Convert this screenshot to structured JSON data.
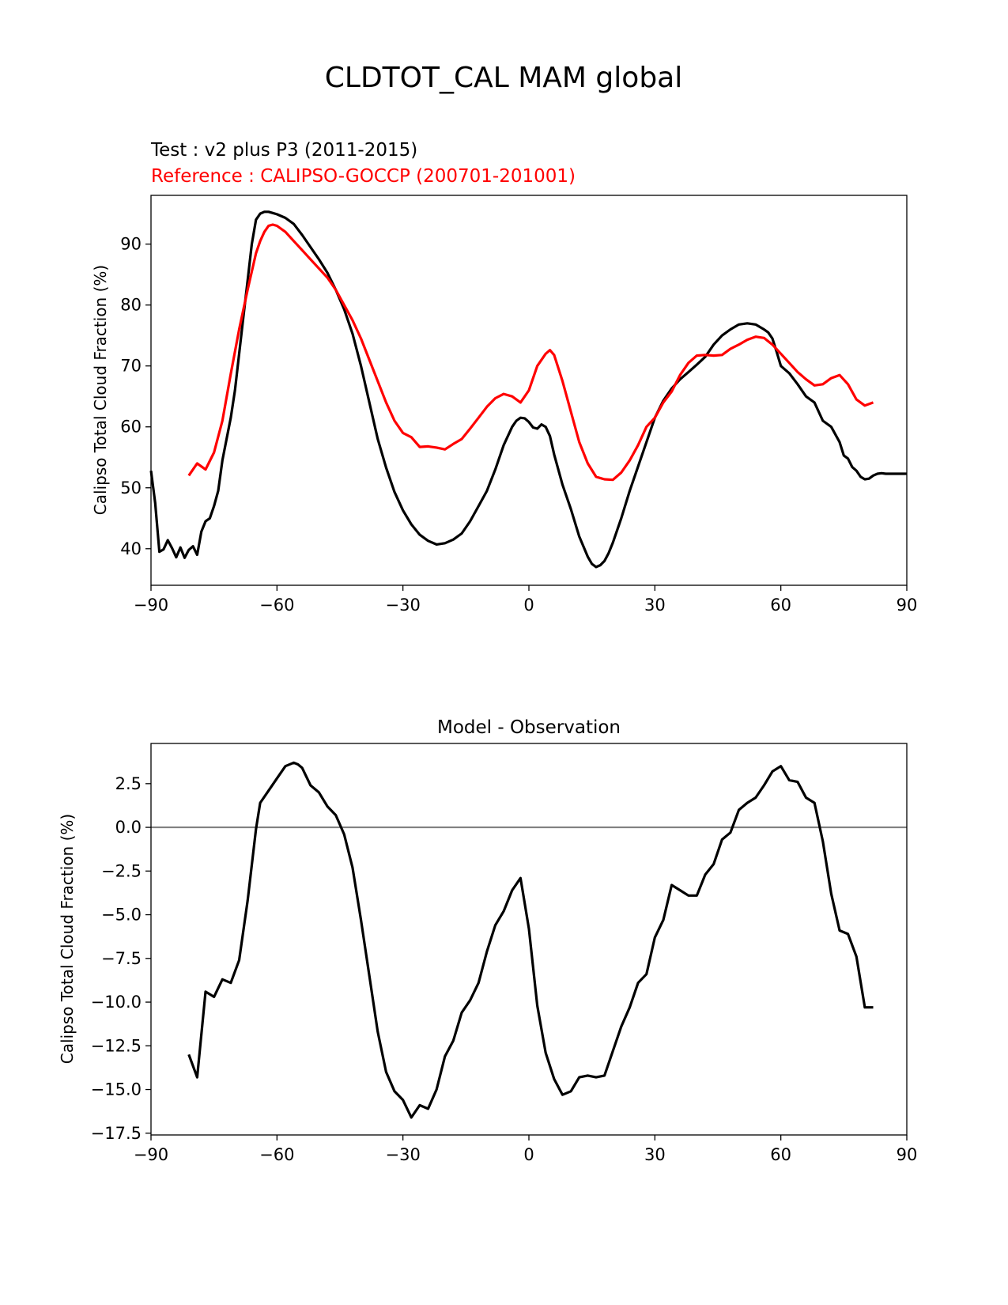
{
  "figure": {
    "title": "CLDTOT_CAL MAM global"
  },
  "chart_data": [
    {
      "type": "line",
      "test_label": "Test : v2 plus P3 (2011-2015)",
      "reference_label": "Reference : CALIPSO-GOCCP (200701-201001)",
      "ylabel": "Calipso Total Cloud Fraction (%)",
      "xlabel": "",
      "xlim": [
        -90,
        90
      ],
      "ylim": [
        34,
        98
      ],
      "xticks": [
        -90,
        -60,
        -30,
        0,
        30,
        60,
        90
      ],
      "xtick_labels": [
        "−90",
        "−60",
        "−30",
        "0",
        "30",
        "60",
        "90"
      ],
      "yticks": [
        40,
        50,
        60,
        70,
        80,
        90
      ],
      "ytick_labels": [
        "40",
        "50",
        "60",
        "70",
        "80",
        "90"
      ],
      "series": [
        {
          "color": "#000000",
          "x": [
            -90,
            -89,
            -88,
            -87,
            -86,
            -85,
            -84,
            -83,
            -82,
            -81,
            -80,
            -79,
            -78,
            -77,
            -76,
            -75,
            -74,
            -73,
            -72,
            -71,
            -70,
            -69,
            -68,
            -67,
            -66,
            -65,
            -64,
            -63,
            -62,
            -61,
            -60,
            -58,
            -56,
            -54,
            -52,
            -50,
            -48,
            -46,
            -44,
            -42,
            -40,
            -38,
            -36,
            -34,
            -32,
            -30,
            -28,
            -26,
            -24,
            -22,
            -20,
            -18,
            -16,
            -14,
            -12,
            -10,
            -8,
            -6,
            -4,
            -3,
            -2,
            -1,
            0,
            1,
            2,
            3,
            4,
            5,
            6,
            8,
            10,
            12,
            14,
            15,
            16,
            17,
            18,
            19,
            20,
            22,
            24,
            26,
            28,
            30,
            32,
            34,
            36,
            38,
            40,
            42,
            44,
            46,
            48,
            50,
            52,
            54,
            56,
            57,
            58,
            59,
            60,
            62,
            64,
            66,
            68,
            69,
            70,
            72,
            74,
            75,
            76,
            77,
            78,
            79,
            80,
            81,
            82,
            83,
            84,
            85,
            86,
            87,
            88,
            89,
            90
          ],
          "y": [
            52.8,
            47.5,
            39.5,
            39.9,
            41.4,
            40.1,
            38.6,
            40.2,
            38.5,
            39.8,
            40.4,
            39.0,
            42.8,
            44.5,
            45.0,
            47.0,
            49.5,
            54.5,
            58.0,
            61.5,
            66.0,
            72.0,
            78.0,
            84.0,
            90.0,
            94.0,
            95.0,
            95.3,
            95.3,
            95.1,
            94.9,
            94.3,
            93.3,
            91.5,
            89.5,
            87.5,
            85.3,
            82.5,
            79.3,
            75.3,
            70.0,
            64.0,
            58.0,
            53.3,
            49.3,
            46.3,
            44.0,
            42.3,
            41.3,
            40.7,
            40.9,
            41.5,
            42.5,
            44.5,
            47.0,
            49.5,
            53.0,
            57.0,
            60.0,
            61.0,
            61.5,
            61.4,
            60.8,
            59.9,
            59.7,
            60.4,
            60.0,
            58.5,
            55.5,
            50.5,
            46.5,
            42.0,
            38.7,
            37.5,
            37.0,
            37.3,
            38.0,
            39.3,
            41.0,
            45.0,
            49.5,
            53.5,
            57.5,
            61.5,
            64.3,
            66.3,
            67.8,
            69.0,
            70.2,
            71.5,
            73.5,
            75.0,
            76.0,
            76.8,
            77.0,
            76.8,
            76.0,
            75.5,
            74.5,
            72.3,
            70.0,
            68.8,
            67.0,
            65.0,
            64.0,
            62.5,
            61.0,
            60.0,
            57.5,
            55.3,
            54.8,
            53.4,
            52.8,
            51.8,
            51.4,
            51.5,
            52.0,
            52.3,
            52.4,
            52.3,
            52.3,
            52.3,
            52.3,
            52.3,
            52.3
          ]
        },
        {
          "color": "#ff0000",
          "x": [
            -81,
            -79,
            -77,
            -75,
            -73,
            -71,
            -69,
            -67,
            -65,
            -64,
            -63,
            -62,
            -61,
            -60,
            -58,
            -56,
            -54,
            -52,
            -50,
            -48,
            -46,
            -44,
            -42,
            -40,
            -38,
            -36,
            -34,
            -32,
            -30,
            -28,
            -26,
            -24,
            -22,
            -20,
            -18,
            -16,
            -14,
            -12,
            -10,
            -8,
            -6,
            -4,
            -2,
            0,
            2,
            4,
            5,
            6,
            8,
            10,
            12,
            14,
            16,
            18,
            20,
            22,
            24,
            26,
            28,
            30,
            32,
            34,
            36,
            38,
            40,
            42,
            44,
            46,
            48,
            50,
            52,
            54,
            56,
            58,
            60,
            62,
            64,
            66,
            68,
            70,
            72,
            74,
            76,
            78,
            80,
            82
          ],
          "y": [
            52.0,
            54.0,
            53.0,
            55.8,
            61.0,
            68.7,
            76.0,
            82.5,
            88.5,
            90.5,
            92.0,
            93.0,
            93.2,
            93.0,
            92.0,
            90.5,
            89.0,
            87.5,
            86.0,
            84.5,
            82.5,
            80.0,
            77.5,
            74.5,
            71.0,
            67.5,
            64.0,
            61.0,
            59.0,
            58.3,
            56.7,
            56.8,
            56.6,
            56.3,
            57.2,
            58.0,
            59.7,
            61.5,
            63.3,
            64.7,
            65.4,
            65.0,
            64.0,
            66.0,
            70.0,
            72.0,
            72.6,
            71.8,
            67.5,
            62.5,
            57.5,
            54.0,
            51.8,
            51.4,
            51.3,
            52.5,
            54.5,
            57.0,
            60.0,
            61.5,
            64.0,
            65.8,
            68.5,
            70.5,
            71.7,
            71.8,
            71.7,
            71.8,
            72.8,
            73.5,
            74.3,
            74.8,
            74.6,
            73.5,
            72.0,
            70.5,
            69.0,
            67.8,
            66.8,
            67.0,
            68.0,
            68.5,
            67.0,
            64.5,
            63.5,
            64.0
          ]
        }
      ]
    },
    {
      "type": "line",
      "title": "Model - Observation",
      "ylabel": "Calipso Total Cloud Fraction (%)",
      "xlabel": "",
      "xlim": [
        -90,
        90
      ],
      "ylim": [
        -17.6,
        4.8
      ],
      "xticks": [
        -90,
        -60,
        -30,
        0,
        30,
        60,
        90
      ],
      "xtick_labels": [
        "−90",
        "−60",
        "−30",
        "0",
        "30",
        "60",
        "90"
      ],
      "yticks": [
        2.5,
        0.0,
        -2.5,
        -5.0,
        -7.5,
        -10.0,
        -12.5,
        -15.0,
        -17.5
      ],
      "ytick_labels": [
        "2.5",
        "0.0",
        "−2.5",
        "−5.0",
        "−7.5",
        "−10.0",
        "−12.5",
        "−15.0",
        "−17.5"
      ],
      "zero_line": 0,
      "series": [
        {
          "color": "#000000",
          "x": [
            -81,
            -79,
            -77,
            -75,
            -73,
            -71,
            -69,
            -67,
            -65,
            -64,
            -62,
            -60,
            -58,
            -56,
            -55,
            -54,
            -52,
            -50,
            -48,
            -46,
            -44,
            -42,
            -40,
            -38,
            -36,
            -34,
            -32,
            -30,
            -28,
            -26,
            -24,
            -22,
            -20,
            -18,
            -16,
            -14,
            -12,
            -10,
            -8,
            -6,
            -4,
            -2,
            0,
            2,
            4,
            6,
            8,
            10,
            12,
            14,
            16,
            18,
            20,
            22,
            24,
            26,
            28,
            30,
            32,
            34,
            36,
            38,
            40,
            42,
            44,
            46,
            48,
            50,
            52,
            54,
            56,
            58,
            60,
            62,
            64,
            66,
            68,
            70,
            72,
            74,
            76,
            78,
            80,
            82
          ],
          "y": [
            -13.0,
            -14.3,
            -9.4,
            -9.7,
            -8.7,
            -8.9,
            -7.6,
            -4.2,
            -0.1,
            1.4,
            2.1,
            2.8,
            3.5,
            3.7,
            3.6,
            3.4,
            2.4,
            2.0,
            1.2,
            0.7,
            -0.4,
            -2.3,
            -5.3,
            -8.5,
            -11.7,
            -14.0,
            -15.1,
            -15.6,
            -16.6,
            -15.9,
            -16.1,
            -15.0,
            -13.1,
            -12.2,
            -10.6,
            -9.9,
            -8.9,
            -7.1,
            -5.6,
            -4.8,
            -3.6,
            -2.9,
            -5.8,
            -10.2,
            -12.9,
            -14.4,
            -15.3,
            -15.1,
            -14.3,
            -14.2,
            -14.3,
            -14.2,
            -12.8,
            -11.4,
            -10.3,
            -8.9,
            -8.4,
            -6.3,
            -5.3,
            -3.3,
            -3.6,
            -3.9,
            -3.9,
            -2.7,
            -2.1,
            -0.7,
            -0.3,
            1.0,
            1.4,
            1.7,
            2.4,
            3.2,
            3.5,
            2.7,
            2.6,
            1.7,
            1.4,
            -0.8,
            -3.8,
            -5.9,
            -6.1,
            -7.4,
            -10.3,
            -10.3
          ]
        }
      ]
    }
  ]
}
